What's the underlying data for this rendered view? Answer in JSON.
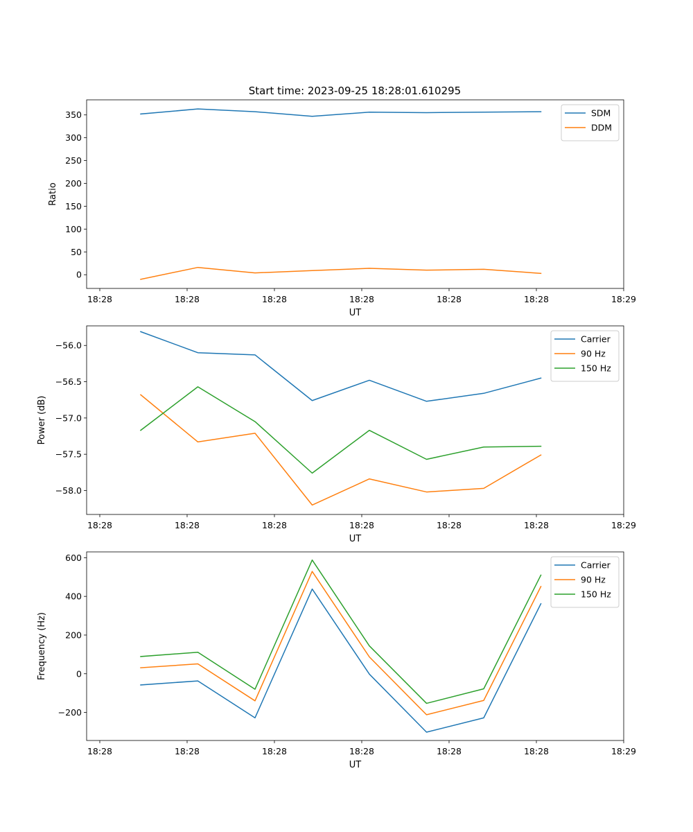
{
  "colors": {
    "blue": "#1f77b4",
    "orange": "#ff7f0e",
    "green": "#2ca02c"
  },
  "chart_data": [
    {
      "type": "line",
      "title": "Start time: 2023-09-25 18:28:01.610295",
      "xlabel": "UT",
      "ylabel": "Ratio",
      "x_tick_labels": [
        "18:28",
        "18:28",
        "18:28",
        "18:28",
        "18:28",
        "18:28",
        "18:29"
      ],
      "y_ticks": [
        0,
        50,
        100,
        150,
        200,
        250,
        300,
        350
      ],
      "y_tick_labels": [
        "0",
        "50",
        "100",
        "150",
        "200",
        "250",
        "300",
        "350"
      ],
      "ylim": [
        -30,
        383
      ],
      "grid": false,
      "legend_position": "top-right",
      "series": [
        {
          "name": "SDM",
          "color": "#1f77b4",
          "values": [
            352,
            363,
            357,
            347,
            356,
            355,
            356,
            357
          ]
        },
        {
          "name": "DDM",
          "color": "#ff7f0e",
          "values": [
            -10,
            16,
            4,
            9,
            14,
            10,
            12,
            3
          ]
        }
      ]
    },
    {
      "type": "line",
      "title": "",
      "xlabel": "UT",
      "ylabel": "Power (dB)",
      "x_tick_labels": [
        "18:28",
        "18:28",
        "18:28",
        "18:28",
        "18:28",
        "18:28",
        "18:29"
      ],
      "y_ticks": [
        -58,
        -57.5,
        -57,
        -56.5,
        -56
      ],
      "y_tick_labels": [
        "−58.0",
        "−57.5",
        "−57.0",
        "−56.5",
        "−56.0"
      ],
      "ylim": [
        -58.33,
        -55.73
      ],
      "grid": false,
      "legend_position": "top-right",
      "series": [
        {
          "name": "Carrier",
          "color": "#1f77b4",
          "values": [
            -55.81,
            -56.1,
            -56.13,
            -56.76,
            -56.48,
            -56.77,
            -56.66,
            -56.45
          ]
        },
        {
          "name": "90 Hz",
          "color": "#ff7f0e",
          "values": [
            -56.68,
            -57.33,
            -57.21,
            -58.2,
            -57.84,
            -58.02,
            -57.97,
            -57.51
          ]
        },
        {
          "name": "150 Hz",
          "color": "#2ca02c",
          "values": [
            -57.17,
            -56.57,
            -57.05,
            -57.76,
            -57.17,
            -57.57,
            -57.4,
            -57.39
          ]
        }
      ]
    },
    {
      "type": "line",
      "title": "",
      "xlabel": "UT",
      "ylabel": "Frequency (Hz)",
      "x_tick_labels": [
        "18:28",
        "18:28",
        "18:28",
        "18:28",
        "18:28",
        "18:28",
        "18:29"
      ],
      "y_ticks": [
        -200,
        0,
        200,
        400,
        600
      ],
      "y_tick_labels": [
        "−200",
        "0",
        "200",
        "400",
        "600"
      ],
      "ylim": [
        -345,
        630
      ],
      "grid": false,
      "legend_position": "top-right",
      "series": [
        {
          "name": "Carrier",
          "color": "#1f77b4",
          "values": [
            -58,
            -37,
            -228,
            438,
            -2,
            -302,
            -228,
            362
          ]
        },
        {
          "name": "90 Hz",
          "color": "#ff7f0e",
          "values": [
            31,
            51,
            -140,
            529,
            87,
            -212,
            -138,
            451
          ]
        },
        {
          "name": "150 Hz",
          "color": "#2ca02c",
          "values": [
            89,
            111,
            -80,
            588,
            144,
            -153,
            -78,
            510
          ]
        }
      ]
    }
  ]
}
